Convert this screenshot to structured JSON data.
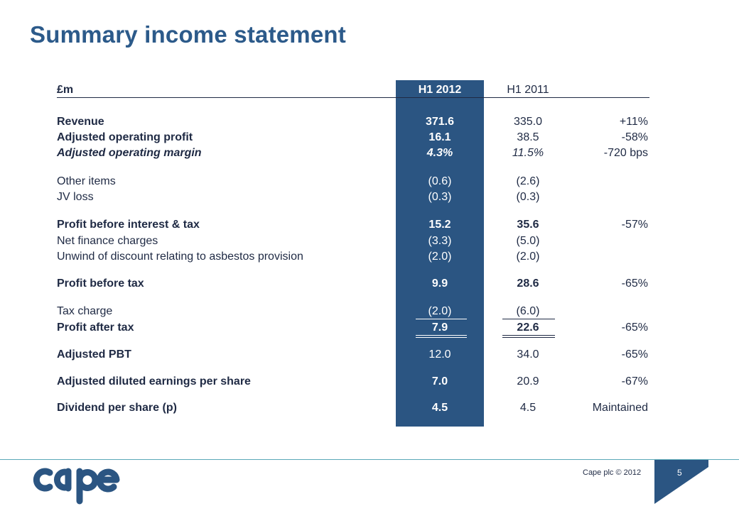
{
  "title": "Summary income statement",
  "header": {
    "label": "£m",
    "col1": "H1 2012",
    "col2": "H1 2011",
    "col3": ""
  },
  "rows": [
    {
      "label": "Revenue",
      "h12012": "371.6",
      "h12011": "335.0",
      "change": "+11%"
    },
    {
      "label": "Adjusted operating profit",
      "h12012": "16.1",
      "h12011": "38.5",
      "change": "-58%"
    },
    {
      "label": "Adjusted operating margin",
      "h12012": "4.3%",
      "h12011": "11.5%",
      "change": "-720 bps"
    },
    {
      "label": "Other items",
      "h12012": "(0.6)",
      "h12011": "(2.6)",
      "change": ""
    },
    {
      "label": "JV loss",
      "h12012": "(0.3)",
      "h12011": "(0.3)",
      "change": ""
    },
    {
      "label": "Profit before interest & tax",
      "h12012": "15.2",
      "h12011": "35.6",
      "change": "-57%"
    },
    {
      "label": "Net finance charges",
      "h12012": "(3.3)",
      "h12011": "(5.0)",
      "change": ""
    },
    {
      "label": "Unwind of discount relating to asbestos provision",
      "h12012": "(2.0)",
      "h12011": "(2.0)",
      "change": ""
    },
    {
      "label": "Profit before tax",
      "h12012": "9.9",
      "h12011": "28.6",
      "change": "-65%"
    },
    {
      "label": "Tax charge",
      "h12012": "(2.0)",
      "h12011": "(6.0)",
      "change": ""
    },
    {
      "label": "Profit after tax",
      "h12012": "7.9",
      "h12011": "22.6",
      "change": "-65%"
    },
    {
      "label": "Adjusted PBT",
      "h12012": "12.0",
      "h12011": "34.0",
      "change": "-65%"
    },
    {
      "label": "Adjusted diluted earnings per share",
      "h12012": "7.0",
      "h12011": "20.9",
      "change": "-67%"
    },
    {
      "label": "Dividend per share (p)",
      "h12012": "4.5",
      "h12011": "4.5",
      "change": "Maintained"
    }
  ],
  "footer": {
    "logo_text": "cape",
    "copyright": "Cape plc © 2012",
    "page_number": "5"
  },
  "colors": {
    "accent": "#2b5582",
    "title": "#2c5a8a",
    "rule": "#5aa9b8"
  }
}
